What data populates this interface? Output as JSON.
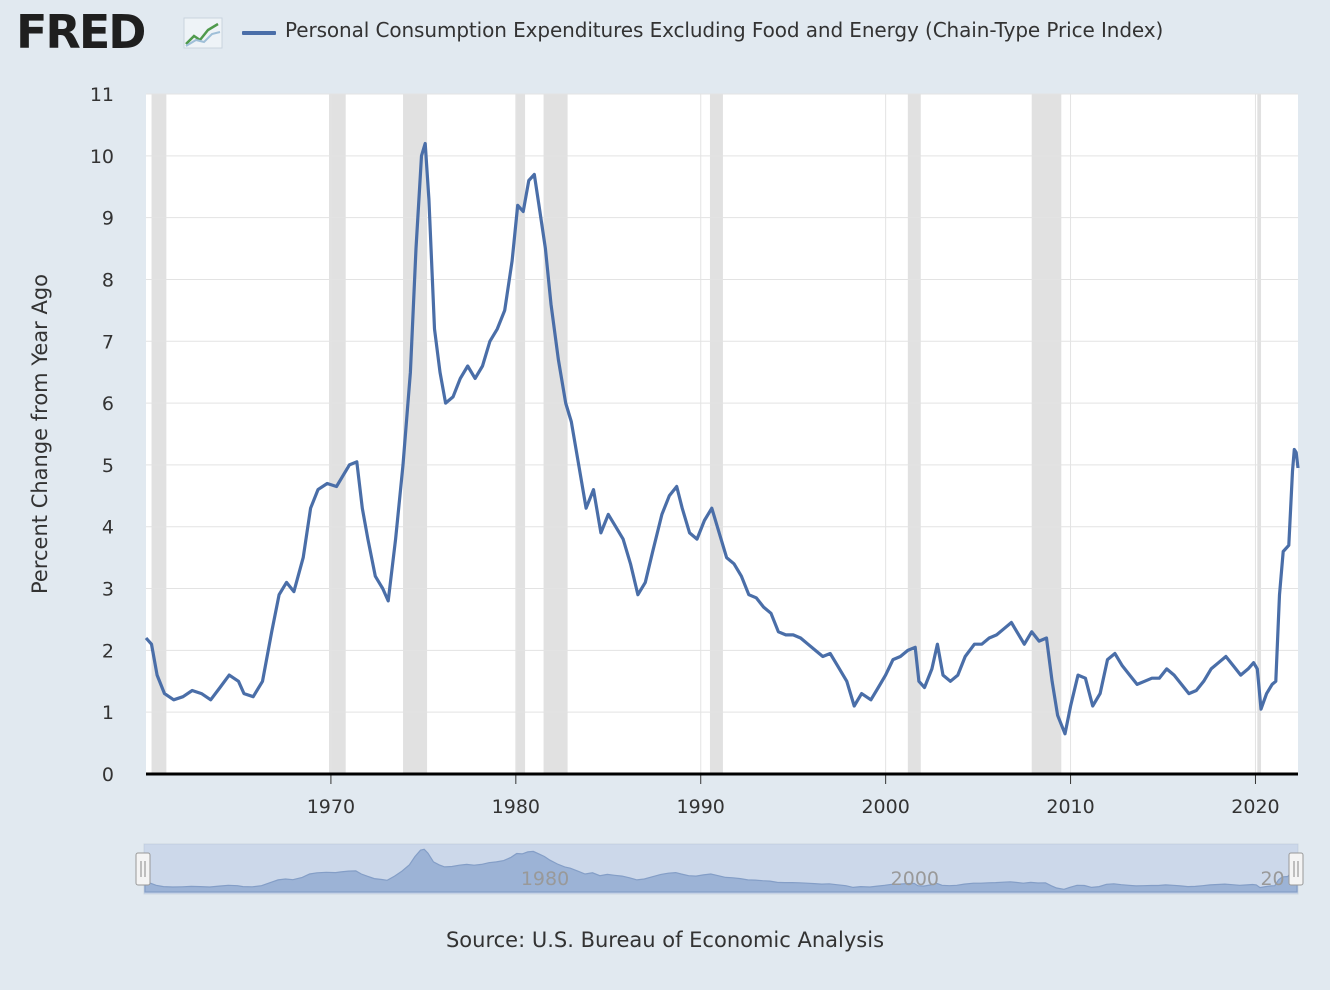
{
  "header": {
    "logo_text": "FRED",
    "legend_label": "Personal Consumption Expenditures Excluding Food and Energy (Chain-Type Price Index)"
  },
  "colors": {
    "series": "#4a6ea8",
    "recession": "#e1e1e1",
    "background": "#e1e9f0",
    "plot": "#ffffff",
    "navigator_mask": "#b4c6e0"
  },
  "chart_data": {
    "type": "line",
    "title": "",
    "ylabel": "Percent Change from Year Ago",
    "xlabel": "",
    "xlim": [
      1960.0,
      2022.3
    ],
    "ylim": [
      0,
      11
    ],
    "x_ticks": [
      "1970",
      "1980",
      "1990",
      "2000",
      "2010",
      "2020"
    ],
    "y_ticks": [
      "0",
      "1",
      "2",
      "3",
      "4",
      "5",
      "6",
      "7",
      "8",
      "9",
      "10",
      "11"
    ],
    "grid": true,
    "legend_position": "top",
    "recessions": [
      [
        1960.3,
        1961.1
      ],
      [
        1969.9,
        1970.8
      ],
      [
        1973.9,
        1975.2
      ],
      [
        1980.0,
        1980.5
      ],
      [
        1981.5,
        1982.8
      ],
      [
        1990.5,
        1991.2
      ],
      [
        2001.2,
        2001.9
      ],
      [
        2007.9,
        2009.5
      ],
      [
        2020.1,
        2020.3
      ]
    ],
    "series": [
      {
        "name": "Personal Consumption Expenditures Excluding Food and Energy (Chain-Type Price Index)",
        "points": [
          [
            1960.0,
            2.2
          ],
          [
            1960.3,
            2.1
          ],
          [
            1960.6,
            1.6
          ],
          [
            1961.0,
            1.3
          ],
          [
            1961.5,
            1.2
          ],
          [
            1962.0,
            1.25
          ],
          [
            1962.5,
            1.35
          ],
          [
            1963.0,
            1.3
          ],
          [
            1963.5,
            1.2
          ],
          [
            1964.0,
            1.4
          ],
          [
            1964.5,
            1.6
          ],
          [
            1965.0,
            1.5
          ],
          [
            1965.3,
            1.3
          ],
          [
            1965.8,
            1.25
          ],
          [
            1966.3,
            1.5
          ],
          [
            1966.8,
            2.3
          ],
          [
            1967.2,
            2.9
          ],
          [
            1967.6,
            3.1
          ],
          [
            1968.0,
            2.95
          ],
          [
            1968.5,
            3.5
          ],
          [
            1968.9,
            4.3
          ],
          [
            1969.3,
            4.6
          ],
          [
            1969.8,
            4.7
          ],
          [
            1970.3,
            4.65
          ],
          [
            1970.6,
            4.8
          ],
          [
            1971.0,
            5.0
          ],
          [
            1971.4,
            5.05
          ],
          [
            1971.7,
            4.3
          ],
          [
            1972.0,
            3.8
          ],
          [
            1972.4,
            3.2
          ],
          [
            1972.8,
            3.0
          ],
          [
            1973.1,
            2.8
          ],
          [
            1973.5,
            3.8
          ],
          [
            1973.9,
            5.0
          ],
          [
            1974.3,
            6.5
          ],
          [
            1974.6,
            8.5
          ],
          [
            1974.9,
            10.0
          ],
          [
            1975.1,
            10.2
          ],
          [
            1975.3,
            9.3
          ],
          [
            1975.6,
            7.2
          ],
          [
            1975.9,
            6.5
          ],
          [
            1976.2,
            6.0
          ],
          [
            1976.6,
            6.1
          ],
          [
            1977.0,
            6.4
          ],
          [
            1977.4,
            6.6
          ],
          [
            1977.8,
            6.4
          ],
          [
            1978.2,
            6.6
          ],
          [
            1978.6,
            7.0
          ],
          [
            1979.0,
            7.2
          ],
          [
            1979.4,
            7.5
          ],
          [
            1979.8,
            8.3
          ],
          [
            1980.1,
            9.2
          ],
          [
            1980.4,
            9.1
          ],
          [
            1980.7,
            9.6
          ],
          [
            1981.0,
            9.7
          ],
          [
            1981.3,
            9.1
          ],
          [
            1981.6,
            8.5
          ],
          [
            1981.9,
            7.6
          ],
          [
            1982.3,
            6.7
          ],
          [
            1982.7,
            6.0
          ],
          [
            1983.0,
            5.7
          ],
          [
            1983.4,
            5.0
          ],
          [
            1983.8,
            4.3
          ],
          [
            1984.2,
            4.6
          ],
          [
            1984.6,
            3.9
          ],
          [
            1985.0,
            4.2
          ],
          [
            1985.4,
            4.0
          ],
          [
            1985.8,
            3.8
          ],
          [
            1986.2,
            3.4
          ],
          [
            1986.6,
            2.9
          ],
          [
            1987.0,
            3.1
          ],
          [
            1987.4,
            3.6
          ],
          [
            1987.9,
            4.2
          ],
          [
            1988.3,
            4.5
          ],
          [
            1988.7,
            4.65
          ],
          [
            1989.0,
            4.3
          ],
          [
            1989.4,
            3.9
          ],
          [
            1989.8,
            3.8
          ],
          [
            1990.2,
            4.1
          ],
          [
            1990.6,
            4.3
          ],
          [
            1991.0,
            3.9
          ],
          [
            1991.4,
            3.5
          ],
          [
            1991.8,
            3.4
          ],
          [
            1992.2,
            3.2
          ],
          [
            1992.6,
            2.9
          ],
          [
            1993.0,
            2.85
          ],
          [
            1993.4,
            2.7
          ],
          [
            1993.8,
            2.6
          ],
          [
            1994.2,
            2.3
          ],
          [
            1994.6,
            2.25
          ],
          [
            1995.0,
            2.25
          ],
          [
            1995.4,
            2.2
          ],
          [
            1995.8,
            2.1
          ],
          [
            1996.2,
            2.0
          ],
          [
            1996.6,
            1.9
          ],
          [
            1997.0,
            1.95
          ],
          [
            1997.4,
            1.75
          ],
          [
            1997.9,
            1.5
          ],
          [
            1998.3,
            1.1
          ],
          [
            1998.7,
            1.3
          ],
          [
            1999.2,
            1.2
          ],
          [
            1999.6,
            1.4
          ],
          [
            2000.0,
            1.6
          ],
          [
            2000.4,
            1.85
          ],
          [
            2000.8,
            1.9
          ],
          [
            2001.2,
            2.0
          ],
          [
            2001.6,
            2.05
          ],
          [
            2001.8,
            1.5
          ],
          [
            2002.1,
            1.4
          ],
          [
            2002.5,
            1.7
          ],
          [
            2002.8,
            2.1
          ],
          [
            2003.1,
            1.6
          ],
          [
            2003.5,
            1.5
          ],
          [
            2003.9,
            1.6
          ],
          [
            2004.3,
            1.9
          ],
          [
            2004.8,
            2.1
          ],
          [
            2005.2,
            2.1
          ],
          [
            2005.6,
            2.2
          ],
          [
            2006.0,
            2.25
          ],
          [
            2006.4,
            2.35
          ],
          [
            2006.8,
            2.45
          ],
          [
            2007.1,
            2.3
          ],
          [
            2007.5,
            2.1
          ],
          [
            2007.9,
            2.3
          ],
          [
            2008.3,
            2.15
          ],
          [
            2008.7,
            2.2
          ],
          [
            2009.0,
            1.5
          ],
          [
            2009.3,
            0.95
          ],
          [
            2009.7,
            0.65
          ],
          [
            2010.0,
            1.1
          ],
          [
            2010.4,
            1.6
          ],
          [
            2010.8,
            1.55
          ],
          [
            2011.2,
            1.1
          ],
          [
            2011.6,
            1.3
          ],
          [
            2012.0,
            1.85
          ],
          [
            2012.4,
            1.95
          ],
          [
            2012.8,
            1.75
          ],
          [
            2013.2,
            1.6
          ],
          [
            2013.6,
            1.45
          ],
          [
            2014.0,
            1.5
          ],
          [
            2014.4,
            1.55
          ],
          [
            2014.8,
            1.55
          ],
          [
            2015.2,
            1.7
          ],
          [
            2015.6,
            1.6
          ],
          [
            2016.0,
            1.45
          ],
          [
            2016.4,
            1.3
          ],
          [
            2016.8,
            1.35
          ],
          [
            2017.2,
            1.5
          ],
          [
            2017.6,
            1.7
          ],
          [
            2018.0,
            1.8
          ],
          [
            2018.4,
            1.9
          ],
          [
            2018.8,
            1.75
          ],
          [
            2019.2,
            1.6
          ],
          [
            2019.6,
            1.7
          ],
          [
            2019.9,
            1.8
          ],
          [
            2020.1,
            1.7
          ],
          [
            2020.3,
            1.05
          ],
          [
            2020.6,
            1.3
          ],
          [
            2020.9,
            1.45
          ],
          [
            2021.1,
            1.5
          ],
          [
            2021.3,
            2.9
          ],
          [
            2021.5,
            3.6
          ],
          [
            2021.8,
            3.7
          ],
          [
            2022.0,
            4.9
          ],
          [
            2022.1,
            5.25
          ],
          [
            2022.2,
            5.2
          ],
          [
            2022.3,
            4.95
          ]
        ]
      }
    ]
  },
  "navigator": {
    "labels": [
      "1980",
      "2000",
      "20"
    ]
  },
  "source_text": "Source: U.S. Bureau of Economic Analysis"
}
